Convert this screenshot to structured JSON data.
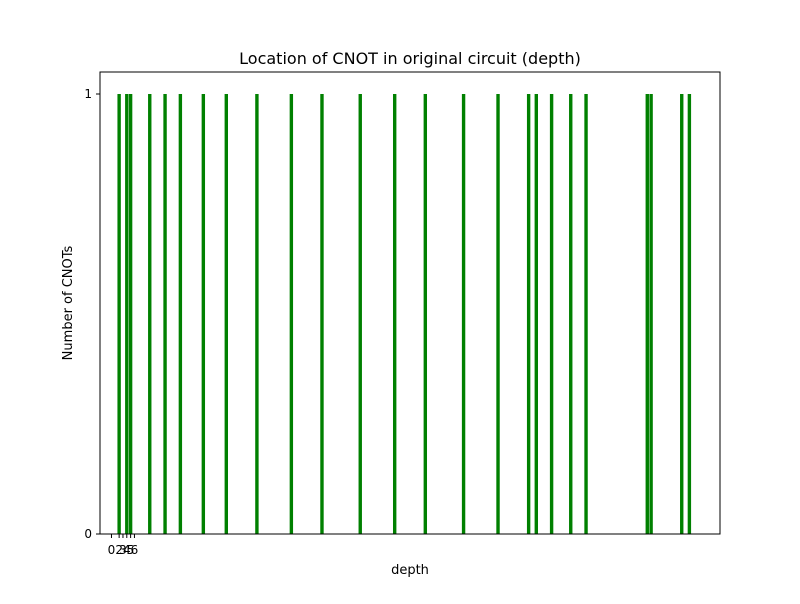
{
  "chart_data": {
    "type": "bar",
    "title": "Location of CNOT in original circuit (depth)",
    "xlabel": "depth",
    "ylabel": "Number of CNOTs",
    "x": [
      2,
      4,
      5,
      10,
      14,
      18,
      24,
      30,
      38,
      47,
      55,
      65,
      74,
      82,
      92,
      101,
      109,
      111,
      115,
      120,
      124,
      140,
      141,
      149,
      151
    ],
    "values": [
      1,
      1,
      1,
      1,
      1,
      1,
      1,
      1,
      1,
      1,
      1,
      1,
      1,
      1,
      1,
      1,
      1,
      1,
      1,
      1,
      1,
      1,
      1,
      1,
      1
    ],
    "xlim": [
      -3,
      159
    ],
    "ylim": [
      0,
      1.05
    ],
    "x_tick_values": [
      0,
      2,
      3,
      4,
      5,
      6
    ],
    "x_tick_labels": [
      "0",
      "2",
      "3",
      "4",
      "5",
      "6"
    ],
    "y_tick_values": [
      0,
      1
    ],
    "y_tick_labels": [
      "0",
      "1"
    ],
    "grid": false,
    "legend": "none",
    "colors": {
      "bar": "#008000",
      "axes": "#000000",
      "background": "#ffffff"
    }
  }
}
